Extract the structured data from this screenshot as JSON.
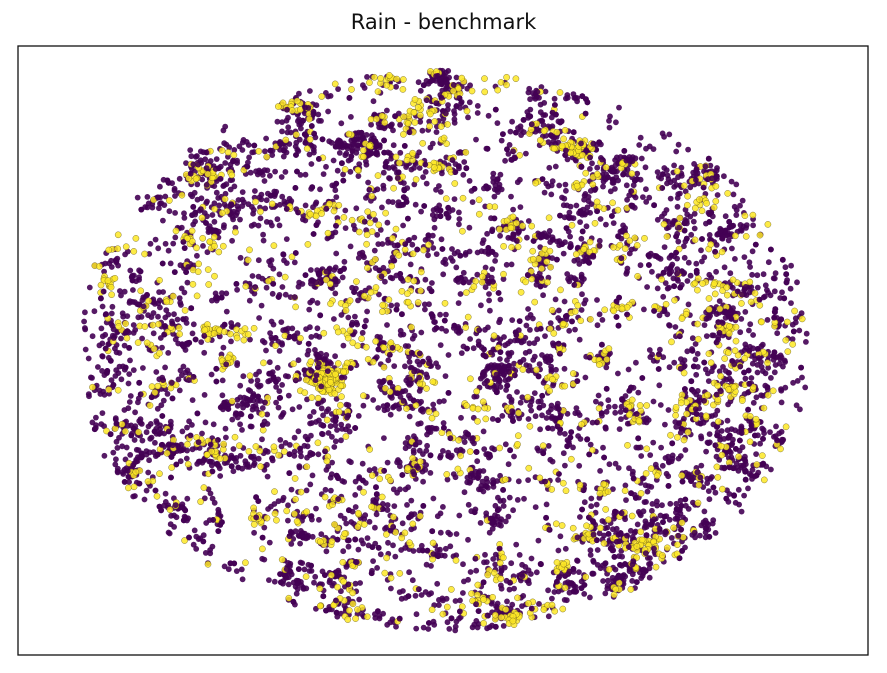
{
  "chart_data": {
    "type": "scatter",
    "title": "Rain - benchmark",
    "xlabel": "",
    "ylabel": "",
    "axes_ticks": false,
    "grid": false,
    "legend": "none",
    "xlim": [
      -100,
      100
    ],
    "ylim": [
      -100,
      100
    ],
    "series": [
      {
        "color": "#440154",
        "approx_points": 12000,
        "x_range": [
          -90,
          90
        ],
        "y_range": [
          -95,
          95
        ]
      },
      {
        "color": "#fde725",
        "approx_points": 2200,
        "x_range": [
          -90,
          90
        ],
        "y_range": [
          -95,
          95
        ]
      }
    ],
    "notable_clusters": [
      {
        "x": -27,
        "y": -10,
        "color": "#fde725",
        "note": "dense yellow cluster"
      }
    ]
  }
}
